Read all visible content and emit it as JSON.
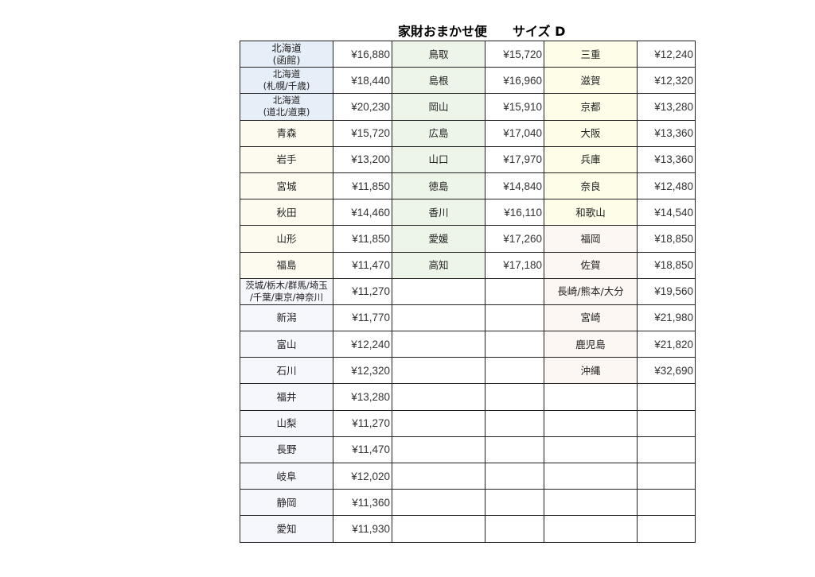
{
  "title": "家財おまかせ便　　サイズ D",
  "colors": {
    "hokkaido": "#e6eef8",
    "tohoku": "#fdfbef",
    "kanto": "#f6f6fd",
    "chugoku": "#edf4e8",
    "kinki": "#fdfde8",
    "kyushu": "#fcf7f2"
  },
  "rows": [
    [
      [
        "北海道\n(函館)",
        "¥16,880",
        "hokkaido"
      ],
      [
        "鳥取",
        "¥15,720",
        "chugoku"
      ],
      [
        "三重",
        "¥12,240",
        "kinki"
      ]
    ],
    [
      [
        "北海道\n(札幌/千歳)",
        "¥18,440",
        "hokkaido"
      ],
      [
        "島根",
        "¥16,960",
        "chugoku"
      ],
      [
        "滋賀",
        "¥12,320",
        "kinki"
      ]
    ],
    [
      [
        "北海道\n(道北/道東)",
        "¥20,230",
        "hokkaido"
      ],
      [
        "岡山",
        "¥15,910",
        "chugoku"
      ],
      [
        "京都",
        "¥13,280",
        "kinki"
      ]
    ],
    [
      [
        "青森",
        "¥15,720",
        "tohoku"
      ],
      [
        "広島",
        "¥17,040",
        "chugoku"
      ],
      [
        "大阪",
        "¥13,360",
        "kinki"
      ]
    ],
    [
      [
        "岩手",
        "¥13,200",
        "tohoku"
      ],
      [
        "山口",
        "¥17,970",
        "chugoku"
      ],
      [
        "兵庫",
        "¥13,360",
        "kinki"
      ]
    ],
    [
      [
        "宮城",
        "¥11,850",
        "tohoku"
      ],
      [
        "徳島",
        "¥14,840",
        "chugoku"
      ],
      [
        "奈良",
        "¥12,480",
        "kinki"
      ]
    ],
    [
      [
        "秋田",
        "¥14,460",
        "tohoku"
      ],
      [
        "香川",
        "¥16,110",
        "chugoku"
      ],
      [
        "和歌山",
        "¥14,540",
        "kinki"
      ]
    ],
    [
      [
        "山形",
        "¥11,850",
        "tohoku"
      ],
      [
        "愛媛",
        "¥17,260",
        "chugoku"
      ],
      [
        "福岡",
        "¥18,850",
        "kyushu"
      ]
    ],
    [
      [
        "福島",
        "¥11,470",
        "tohoku"
      ],
      [
        "高知",
        "¥17,180",
        "chugoku"
      ],
      [
        "佐賀",
        "¥18,850",
        "kyushu"
      ]
    ],
    [
      [
        "茨城/栃木/群馬/埼玉\n/千葉/東京/神奈川",
        "¥11,270",
        "kanto"
      ],
      [
        "",
        "",
        ""
      ],
      [
        "長崎/熊本/大分",
        "¥19,560",
        "kyushu"
      ]
    ],
    [
      [
        "新潟",
        "¥11,770",
        "kanto"
      ],
      [
        "",
        "",
        ""
      ],
      [
        "宮崎",
        "¥21,980",
        "kyushu"
      ]
    ],
    [
      [
        "富山",
        "¥12,240",
        "kanto"
      ],
      [
        "",
        "",
        ""
      ],
      [
        "鹿児島",
        "¥21,820",
        "kyushu"
      ]
    ],
    [
      [
        "石川",
        "¥12,320",
        "kanto"
      ],
      [
        "",
        "",
        ""
      ],
      [
        "沖縄",
        "¥32,690",
        "kyushu"
      ]
    ],
    [
      [
        "福井",
        "¥13,280",
        "kanto"
      ],
      [
        "",
        "",
        ""
      ],
      [
        "",
        "",
        ""
      ]
    ],
    [
      [
        "山梨",
        "¥11,270",
        "kanto"
      ],
      [
        "",
        "",
        ""
      ],
      [
        "",
        "",
        ""
      ]
    ],
    [
      [
        "長野",
        "¥11,470",
        "kanto"
      ],
      [
        "",
        "",
        ""
      ],
      [
        "",
        "",
        ""
      ]
    ],
    [
      [
        "岐阜",
        "¥12,020",
        "kanto"
      ],
      [
        "",
        "",
        ""
      ],
      [
        "",
        "",
        ""
      ]
    ],
    [
      [
        "静岡",
        "¥11,360",
        "kanto"
      ],
      [
        "",
        "",
        ""
      ],
      [
        "",
        "",
        ""
      ]
    ],
    [
      [
        "愛知",
        "¥11,930",
        "kanto"
      ],
      [
        "",
        "",
        ""
      ],
      [
        "",
        "",
        ""
      ]
    ]
  ]
}
